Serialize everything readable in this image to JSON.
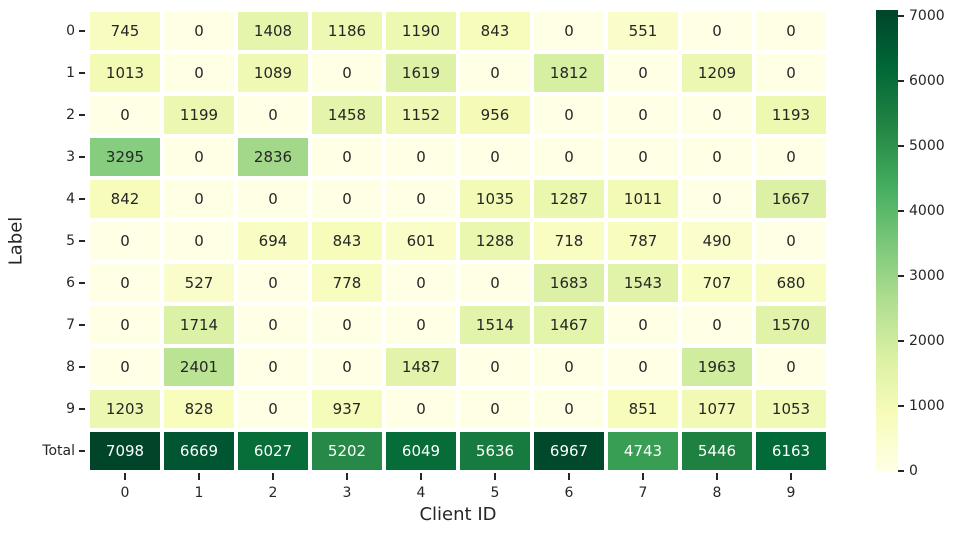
{
  "figure": {
    "background": "#ffffff",
    "text_color": "#262626"
  },
  "chart_data": {
    "type": "heatmap",
    "title": "",
    "xlabel": "Client ID",
    "ylabel": "Label",
    "row_labels": [
      "0",
      "1",
      "2",
      "3",
      "4",
      "5",
      "6",
      "7",
      "8",
      "9",
      "Total"
    ],
    "col_labels": [
      "0",
      "1",
      "2",
      "3",
      "4",
      "5",
      "6",
      "7",
      "8",
      "9"
    ],
    "matrix": [
      [
        745,
        0,
        1408,
        1186,
        1190,
        843,
        0,
        551,
        0,
        0
      ],
      [
        1013,
        0,
        1089,
        0,
        1619,
        0,
        1812,
        0,
        1209,
        0
      ],
      [
        0,
        1199,
        0,
        1458,
        1152,
        956,
        0,
        0,
        0,
        1193
      ],
      [
        3295,
        0,
        2836,
        0,
        0,
        0,
        0,
        0,
        0,
        0
      ],
      [
        842,
        0,
        0,
        0,
        0,
        1035,
        1287,
        1011,
        0,
        1667
      ],
      [
        0,
        0,
        694,
        843,
        601,
        1288,
        718,
        787,
        490,
        0
      ],
      [
        0,
        527,
        0,
        778,
        0,
        0,
        1683,
        1543,
        707,
        680
      ],
      [
        0,
        1714,
        0,
        0,
        0,
        1514,
        1467,
        0,
        0,
        1570
      ],
      [
        0,
        2401,
        0,
        0,
        1487,
        0,
        0,
        0,
        1963,
        0
      ],
      [
        1203,
        828,
        0,
        937,
        0,
        0,
        0,
        851,
        1077,
        1053
      ],
      [
        7098,
        6669,
        6027,
        5202,
        6049,
        5636,
        6967,
        4743,
        5446,
        6163
      ]
    ],
    "vmin": 0,
    "vmax": 7098,
    "colormap": "YlGn",
    "colormap_stops": [
      "#ffffe5",
      "#f7fcb9",
      "#d9f0a3",
      "#addd8e",
      "#78c679",
      "#41ab5d",
      "#238443",
      "#006837",
      "#004529"
    ],
    "colorbar_ticks": [
      0,
      1000,
      2000,
      3000,
      4000,
      5000,
      6000,
      7000
    ],
    "grid_line_color": "#ffffff",
    "cell_text_dark": "#262626",
    "cell_text_light": "#ffffff",
    "legend_position": "right-colorbar",
    "grid": false
  }
}
